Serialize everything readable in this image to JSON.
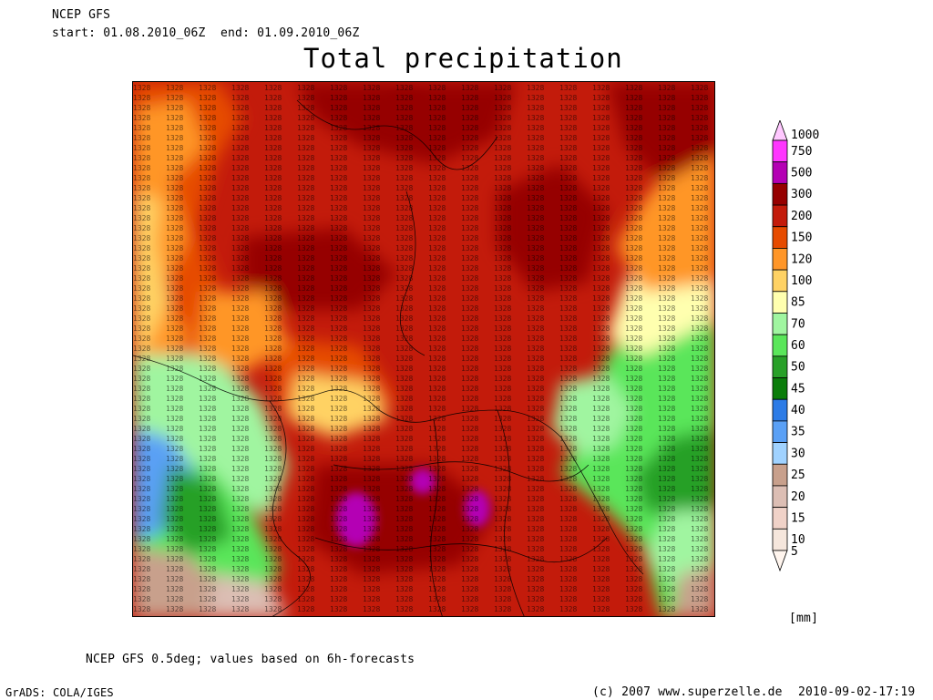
{
  "header": {
    "model_name": "NCEP GFS",
    "start_label": "start:",
    "start_value": "01.08.2010_06Z",
    "end_label": "end:",
    "end_value": "01.09.2010_06Z",
    "title": "Total precipitation"
  },
  "legend": {
    "unit": "[mm]",
    "levels": [
      {
        "label": "1000",
        "color": "#ffc8ff"
      },
      {
        "label": "750",
        "color": "#ff36ff"
      },
      {
        "label": "500",
        "color": "#b400b4"
      },
      {
        "label": "300",
        "color": "#960000"
      },
      {
        "label": "200",
        "color": "#c31b0b"
      },
      {
        "label": "150",
        "color": "#e64b00"
      },
      {
        "label": "120",
        "color": "#ff9628"
      },
      {
        "label": "100",
        "color": "#ffd264"
      },
      {
        "label": "85",
        "color": "#ffffaf"
      },
      {
        "label": "70",
        "color": "#a0f5a0"
      },
      {
        "label": "60",
        "color": "#5ae65a"
      },
      {
        "label": "50",
        "color": "#28a028"
      },
      {
        "label": "45",
        "color": "#0a7d0a"
      },
      {
        "label": "40",
        "color": "#2c7be6"
      },
      {
        "label": "35",
        "color": "#5aa0f5"
      },
      {
        "label": "30",
        "color": "#a0d2ff"
      },
      {
        "label": "25",
        "color": "#c8a08c"
      },
      {
        "label": "20",
        "color": "#dcbeb4"
      },
      {
        "label": "15",
        "color": "#f0d2c8"
      },
      {
        "label": "10",
        "color": "#f5e6dc"
      },
      {
        "label": "5",
        "color": "#fff5ee"
      }
    ]
  },
  "footer": {
    "note": "NCEP GFS 0.5deg; values based on 6h-forecasts",
    "grads_credit": "GrADS: COLA/IGES",
    "copyright": "(c) 2007 www.superzelle.de",
    "timestamp": "2010-09-02-17:19"
  }
}
